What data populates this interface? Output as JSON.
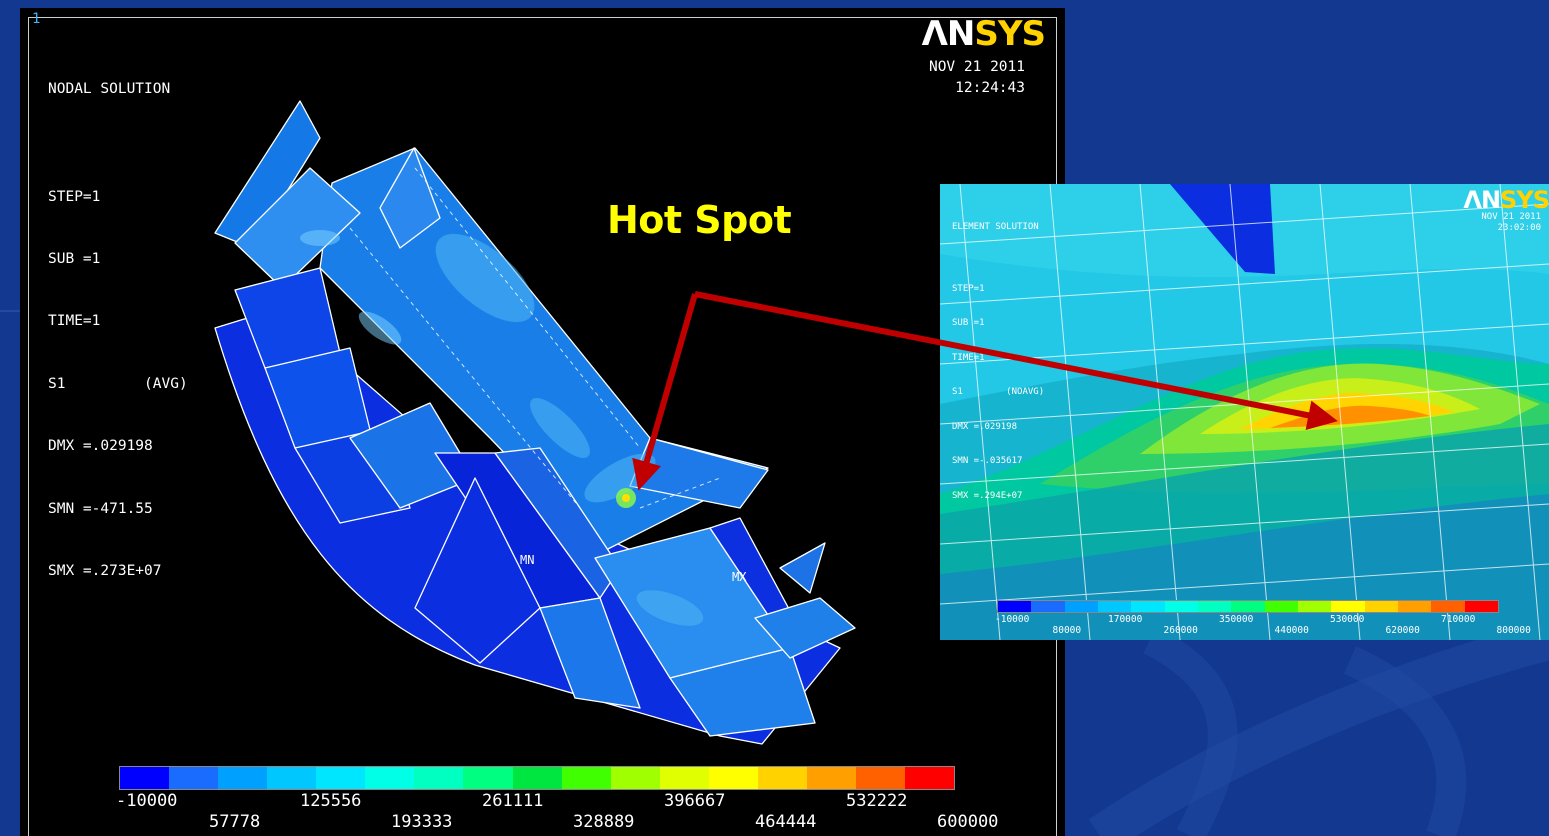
{
  "main_panel": {
    "panel_number": "1",
    "logo_main": "ΛN",
    "logo_accent": "SYS",
    "info_lines": [
      "NODAL SOLUTION",
      "",
      "STEP=1",
      "SUB =1",
      "TIME=1",
      "S1         (AVG)",
      "DMX =.029198",
      "SMN =-471.55",
      "SMX =.273E+07"
    ],
    "date": "NOV 21 2011",
    "time": "12:24:43",
    "label_mn": "MN",
    "label_mx": "MX",
    "legend_colors": [
      "#0000ff",
      "#1a6cff",
      "#00a0ff",
      "#00c8ff",
      "#00e6ff",
      "#00ffe6",
      "#00ffc0",
      "#00ff80",
      "#00e640",
      "#40ff00",
      "#a0ff00",
      "#e0ff00",
      "#ffff00",
      "#ffd200",
      "#ffa000",
      "#ff6000",
      "#ff0000"
    ],
    "legend_upper_ticks": [
      "-10000",
      "125556",
      "261111",
      "396667",
      "532222"
    ],
    "legend_lower_ticks": [
      "57778",
      "193333",
      "328889",
      "464444",
      "600000"
    ]
  },
  "hotspot": {
    "label": "Hot Spot"
  },
  "zoom_panel": {
    "logo_main": "ΛN",
    "logo_accent": "SYS",
    "info_lines": [
      "ELEMENT SOLUTION",
      "",
      "STEP=1",
      "SUB =1",
      "TIME=1",
      "S1        (NOAVG)",
      "DMX =.029198",
      "SMN =-.035617",
      "SMX =.294E+07"
    ],
    "date": "NOV 21 2011",
    "time": "23:02:00",
    "legend_colors": [
      "#0000ff",
      "#1a6cff",
      "#00a0ff",
      "#00c8ff",
      "#00e6ff",
      "#00ffe6",
      "#00ffc0",
      "#00ff80",
      "#40ff00",
      "#a0ff00",
      "#ffff00",
      "#ffd200",
      "#ffa000",
      "#ff6000",
      "#ff0000"
    ],
    "legend_upper_ticks": [
      "-10000",
      "170000",
      "350000",
      "530000",
      "710000"
    ],
    "legend_lower_ticks": [
      "80000",
      "260000",
      "440000",
      "620000",
      "800000"
    ]
  },
  "colors": {
    "slide_background": "#12388f",
    "arrow": "#c00000",
    "hotspot_text": "#ffff00"
  }
}
